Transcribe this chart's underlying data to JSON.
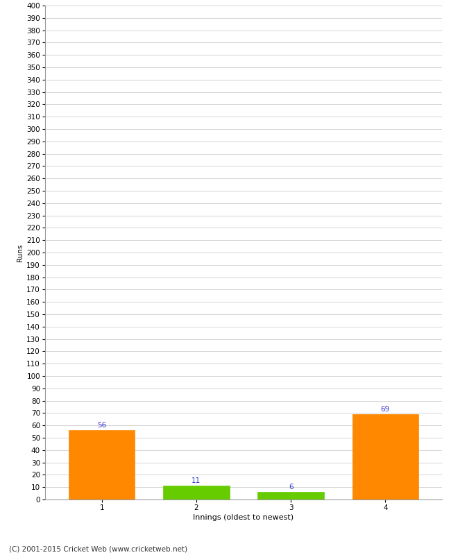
{
  "categories": [
    "1",
    "2",
    "3",
    "4"
  ],
  "values": [
    56,
    11,
    6,
    69
  ],
  "bar_colors": [
    "#ff8800",
    "#66cc00",
    "#66cc00",
    "#ff8800"
  ],
  "xlabel": "Innings (oldest to newest)",
  "ylabel": "Runs",
  "ylim": [
    0,
    400
  ],
  "yticks": [
    0,
    10,
    20,
    30,
    40,
    50,
    60,
    70,
    80,
    90,
    100,
    110,
    120,
    130,
    140,
    150,
    160,
    170,
    180,
    190,
    200,
    210,
    220,
    230,
    240,
    250,
    260,
    270,
    280,
    290,
    300,
    310,
    320,
    330,
    340,
    350,
    360,
    370,
    380,
    390,
    400
  ],
  "annotation_color": "#3333cc",
  "annotation_fontsize": 7.5,
  "xlabel_fontsize": 8,
  "ylabel_fontsize": 7.5,
  "tick_fontsize": 7.5,
  "background_color": "#ffffff",
  "grid_color": "#cccccc",
  "footer": "(C) 2001-2015 Cricket Web (www.cricketweb.net)",
  "footer_fontsize": 7.5
}
